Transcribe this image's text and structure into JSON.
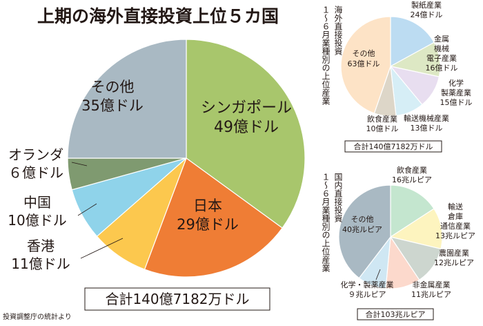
{
  "title": "上期の海外直接投資上位５カ国",
  "source": "投資調整庁の統計より",
  "chart_data": [
    {
      "type": "pie",
      "title": "上期の海外直接投資上位５カ国",
      "unit": "億ドル",
      "total_label": "合計140億7182万ドル",
      "slices": [
        {
          "name": "シンガポール",
          "value": 49,
          "value_label": "49億ドル",
          "color": "#a8c66c"
        },
        {
          "name": "日本",
          "value": 29,
          "value_label": "29億ドル",
          "color": "#ef7d35"
        },
        {
          "name": "香港",
          "value": 11,
          "value_label": "11億ドル",
          "color": "#fcc84e"
        },
        {
          "name": "中国",
          "value": 10,
          "value_label": "10億ドル",
          "color": "#8fd3ea"
        },
        {
          "name": "オランダ",
          "value": 6,
          "value_label": "６億ドル",
          "color": "#7f9a70"
        },
        {
          "name": "その他",
          "value": 35,
          "value_label": "35億ドル",
          "color": "#a9b9c3"
        }
      ]
    },
    {
      "type": "pie",
      "title_lines": [
        "海外直接投資",
        "１～６月業種別の上位産業"
      ],
      "unit": "億ドル",
      "total_label": "合計140億7182万ドル",
      "slices": [
        {
          "name": "製紙産業",
          "value": 24,
          "value_label": "24億ドル",
          "color": "#bcdcf2"
        },
        {
          "name": "金属機械電子産業",
          "label_lines": [
            "金属",
            "機械",
            "電子産業"
          ],
          "value": 16,
          "value_label": "16億ドル",
          "color": "#dde8c4"
        },
        {
          "name": "化学製薬産業",
          "label_lines": [
            "化学",
            "製薬産業"
          ],
          "value": 15,
          "value_label": "15億ドル",
          "color": "#e8def0"
        },
        {
          "name": "輸送機械産業",
          "value": 13,
          "value_label": "13億ドル",
          "color": "#d6eef6"
        },
        {
          "name": "飲食産業",
          "value": 10,
          "value_label": "10億ドル",
          "color": "#ddd6c8"
        },
        {
          "name": "その他",
          "value": 63,
          "value_label": "63億ドル",
          "color": "#fde3c6"
        }
      ]
    },
    {
      "type": "pie",
      "title_lines": [
        "国内直接投資",
        "１～６月業種別の上位産業"
      ],
      "unit": "兆ルピア",
      "total_label": "合計103兆ルピア",
      "slices": [
        {
          "name": "飲食産業",
          "value": 16,
          "value_label": "16兆ルピア",
          "color": "#c4e6cf"
        },
        {
          "name": "輸送倉庫通信産業",
          "label_lines": [
            "輸送",
            "倉庫",
            "通信産業"
          ],
          "value": 13,
          "value_label": "13兆ルピア",
          "color": "#fdf4bf"
        },
        {
          "name": "農園産業",
          "value": 12,
          "value_label": "12兆ルピア",
          "color": "#cdd6cf"
        },
        {
          "name": "非金属産業",
          "value": 11,
          "value_label": "11兆ルピア",
          "color": "#fcd9cc"
        },
        {
          "name": "化学・製薬産業",
          "value": 9,
          "value_label": "９兆ルピア",
          "color": "#cfe7f3"
        },
        {
          "name": "その他",
          "value": 40,
          "value_label": "40兆ルピア",
          "color": "#a9b9c3"
        }
      ]
    }
  ]
}
